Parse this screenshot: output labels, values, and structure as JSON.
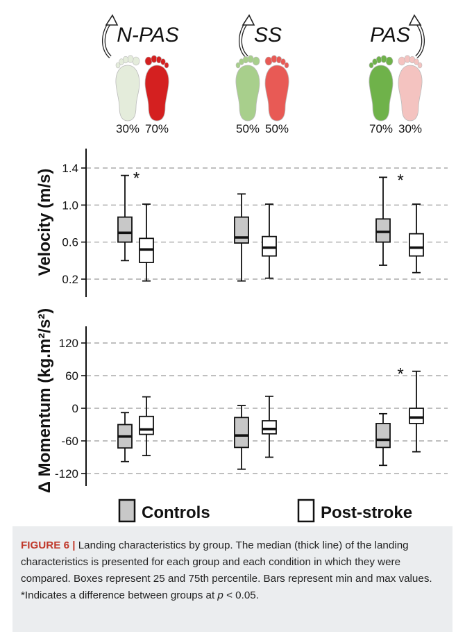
{
  "conditions": [
    {
      "label": "N-PAS",
      "left_pct": "30%",
      "right_pct": "70%",
      "left_color": "#e4ecdb",
      "right_color": "#d42020",
      "arrow": "left"
    },
    {
      "label": "SS",
      "left_pct": "50%",
      "right_pct": "50%",
      "left_color": "#a8cf8c",
      "right_color": "#e85a55",
      "arrow": "left"
    },
    {
      "label": "PAS",
      "left_pct": "70%",
      "right_pct": "30%",
      "left_color": "#6fb24a",
      "right_color": "#f4c3c0",
      "arrow": "right"
    }
  ],
  "legend": {
    "controls_label": "Controls",
    "poststroke_label": "Post-stroke",
    "controls_color": "#c8c8c8",
    "poststroke_color": "#ffffff"
  },
  "caption": {
    "figure_label": "FIGURE 6 |",
    "text": " Landing characteristics by group. The median (thick line) of the landing characteristics is presented for each group and each condition in which they were compared. Boxes represent 25 and 75th percentile. Bars represent min and max values. *Indicates a difference between groups at ",
    "p_symbol": "p",
    "p_value_text": " < 0.05."
  },
  "chart_data": [
    {
      "type": "box",
      "ylabel": "Velocity (m/s)",
      "ylim": [
        0.0,
        1.6
      ],
      "yticks": [
        "1.4",
        "1.0",
        "0.6",
        "0.2"
      ],
      "ytick_values": [
        1.4,
        1.0,
        0.6,
        0.2
      ],
      "grid": true,
      "categories": [
        "N-PAS",
        "SS",
        "PAS"
      ],
      "series": [
        {
          "name": "Controls",
          "boxes": [
            {
              "min": 0.4,
              "q1": 0.6,
              "median": 0.7,
              "q3": 0.87,
              "max": 1.32
            },
            {
              "min": 0.18,
              "q1": 0.59,
              "median": 0.65,
              "q3": 0.87,
              "max": 1.12
            },
            {
              "min": 0.35,
              "q1": 0.6,
              "median": 0.71,
              "q3": 0.85,
              "max": 1.3
            }
          ]
        },
        {
          "name": "Post-stroke",
          "boxes": [
            {
              "min": 0.18,
              "q1": 0.38,
              "median": 0.52,
              "q3": 0.64,
              "max": 1.01
            },
            {
              "min": 0.21,
              "q1": 0.45,
              "median": 0.54,
              "q3": 0.66,
              "max": 1.01
            },
            {
              "min": 0.27,
              "q1": 0.45,
              "median": 0.54,
              "q3": 0.69,
              "max": 1.01
            }
          ]
        }
      ],
      "significance": [
        {
          "category": "N-PAS",
          "text": "*"
        },
        {
          "category": "PAS",
          "text": "*"
        }
      ]
    },
    {
      "type": "box",
      "ylabel": "Δ Momentum (kg.m²/s²)",
      "ylim": [
        -140,
        140
      ],
      "yticks": [
        "120",
        "60",
        "0",
        "-60",
        "-120"
      ],
      "ytick_values": [
        120,
        60,
        0,
        -60,
        -120
      ],
      "grid": true,
      "categories": [
        "N-PAS",
        "SS",
        "PAS"
      ],
      "series": [
        {
          "name": "Controls",
          "boxes": [
            {
              "min": -98,
              "q1": -73,
              "median": -52,
              "q3": -30,
              "max": -8
            },
            {
              "min": -112,
              "q1": -72,
              "median": -50,
              "q3": -17,
              "max": 5
            },
            {
              "min": -105,
              "q1": -72,
              "median": -58,
              "q3": -28,
              "max": -10
            }
          ]
        },
        {
          "name": "Post-stroke",
          "boxes": [
            {
              "min": -87,
              "q1": -48,
              "median": -39,
              "q3": -15,
              "max": 21
            },
            {
              "min": -90,
              "q1": -47,
              "median": -38,
              "q3": -23,
              "max": 22
            },
            {
              "min": -80,
              "q1": -28,
              "median": -17,
              "q3": 0,
              "max": 68
            }
          ]
        }
      ],
      "significance": [
        {
          "category": "PAS",
          "text": "*"
        }
      ]
    }
  ]
}
